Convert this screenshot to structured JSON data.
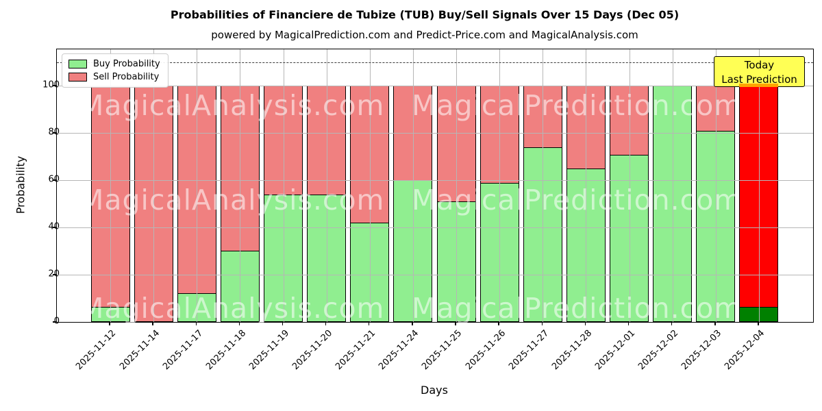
{
  "figure": {
    "title": "Probabilities of Financiere de Tubize (TUB) Buy/Sell Signals Over 15 Days (Dec 05)",
    "subtitle": "powered by MagicalPrediction.com and Predict-Price.com and MagicalAnalysis.com",
    "xlabel": "Days",
    "ylabel": "Probability",
    "legend": {
      "buy_label": "Buy Probability",
      "sell_label": "Sell Probability"
    },
    "annotation": {
      "line1": "Today",
      "line2": "Last Prediction"
    },
    "watermarks": {
      "left_text": "MagicalAnalysis.com",
      "right_text": "MagicalPrediction.com"
    }
  },
  "chart_data": {
    "type": "bar",
    "stacked": true,
    "title": "Probabilities of Financiere de Tubize (TUB) Buy/Sell Signals Over 15 Days (Dec 05)",
    "xlabel": "Days",
    "ylabel": "Probability",
    "categories": [
      "2025-11-12",
      "2025-11-14",
      "2025-11-17",
      "2025-11-18",
      "2025-11-19",
      "2025-11-20",
      "2025-11-21",
      "2025-11-24",
      "2025-11-25",
      "2025-11-26",
      "2025-11-27",
      "2025-11-28",
      "2025-12-01",
      "2025-12-02",
      "2025-12-03",
      "2025-12-04"
    ],
    "series": [
      {
        "name": "Buy Probability",
        "color": "#90EE90",
        "values": [
          6,
          0,
          12,
          30,
          54,
          54,
          42,
          60,
          51,
          59,
          74,
          65,
          71,
          100,
          81,
          6
        ]
      },
      {
        "name": "Sell Probability",
        "color": "#F08080",
        "values": [
          94,
          100,
          88,
          70,
          46,
          46,
          58,
          40,
          49,
          41,
          26,
          35,
          29,
          0,
          19,
          94
        ]
      }
    ],
    "today_bar": {
      "index": 15,
      "buy_color": "#008000",
      "sell_color": "#FF0000",
      "overlap_strip_color": "#FFA500"
    },
    "annotation_box": {
      "text_lines": [
        "Today",
        "Last Prediction"
      ],
      "bg_color": "#FFFF55",
      "position": "top-right"
    },
    "yticks": [
      0,
      20,
      40,
      60,
      80,
      100
    ],
    "ylim": [
      0,
      115.4
    ],
    "dashed_line_y": 110,
    "grid": true,
    "grid_on_top": true,
    "legend_position": "upper left",
    "bar_edge_color": "#000000"
  }
}
